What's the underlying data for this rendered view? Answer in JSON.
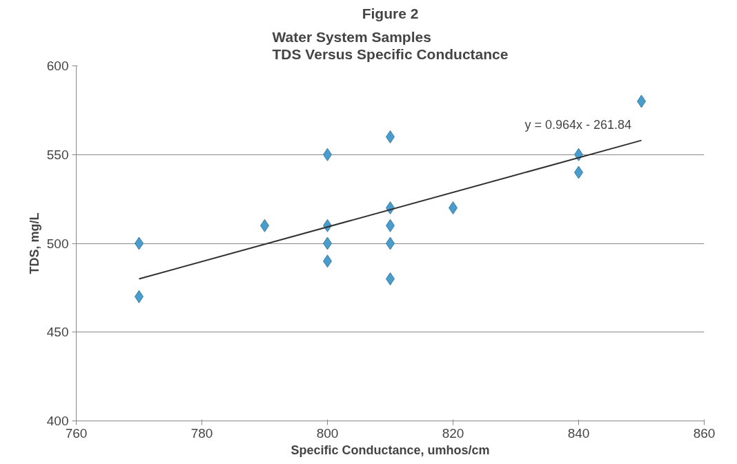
{
  "chart_data": {
    "type": "scatter",
    "title": "Figure 2",
    "subtitle": "Water System Samples\nTDS Versus Specific Conductance",
    "xlabel": "Specific Conductance, umhos/cm",
    "ylabel": "TDS, mg/L",
    "xlim": [
      760,
      860
    ],
    "xticks": [
      760,
      780,
      800,
      820,
      840,
      860
    ],
    "ylim": [
      400,
      600
    ],
    "yticks": [
      400,
      450,
      500,
      550,
      600
    ],
    "grid": "y",
    "series": [
      {
        "marker": "diamond",
        "color": "#4a9ccc",
        "x": [
          770,
          770,
          790,
          800,
          800,
          800,
          800,
          810,
          810,
          810,
          810,
          810,
          820,
          840,
          840,
          850
        ],
        "values": [
          500,
          470,
          510,
          550,
          510,
          500,
          490,
          560,
          520,
          510,
          500,
          480,
          520,
          550,
          540,
          580
        ]
      },
      {
        "type": "line",
        "marker": "none",
        "color": "#303030",
        "x": [
          770,
          850
        ],
        "values": [
          480,
          558
        ]
      }
    ],
    "annotations": [
      "y = 0.964x - 261.84"
    ]
  }
}
